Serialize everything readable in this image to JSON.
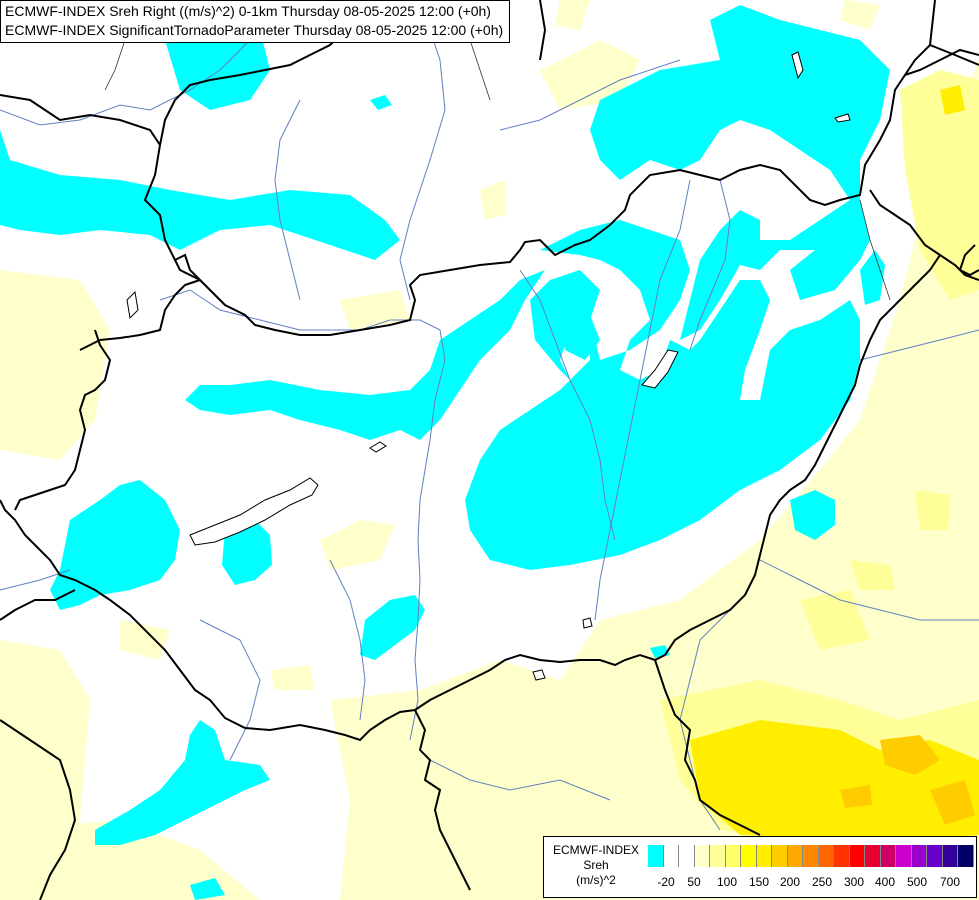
{
  "header": {
    "line1": "ECMWF-INDEX Sreh Right ((m/s)^2) 0-1km Thursday 08-05-2025 12:00 (+0h)",
    "line2": "ECMWF-INDEX SignificantTornadoParameter Thursday 08-05-2025 12:00 (+0h)"
  },
  "legend": {
    "line1": "ECMWF-INDEX",
    "line2": "Sreh",
    "line3": "(m/s)^2",
    "colors": [
      "#00ffff",
      "#ffffff",
      "#ffffff",
      "#ffffcc",
      "#ffff99",
      "#ffff66",
      "#ffff00",
      "#ffee00",
      "#ffcc00",
      "#ffaa00",
      "#ff8800",
      "#ff6600",
      "#ff3300",
      "#ff0000",
      "#e60033",
      "#cc0066",
      "#cc00cc",
      "#9900cc",
      "#6600cc",
      "#330099",
      "#000066"
    ],
    "ticks": [
      "-20",
      "50",
      "100",
      "150",
      "200",
      "250",
      "300",
      "400",
      "500",
      "700"
    ]
  },
  "colors": {
    "cyan": "#00ffff",
    "pale_yellow": "#ffffcc",
    "light_yellow": "#ffff99",
    "yellow": "#ffff00",
    "orange": "#ffcc00",
    "border": "#000000",
    "river": "#6080c0"
  }
}
